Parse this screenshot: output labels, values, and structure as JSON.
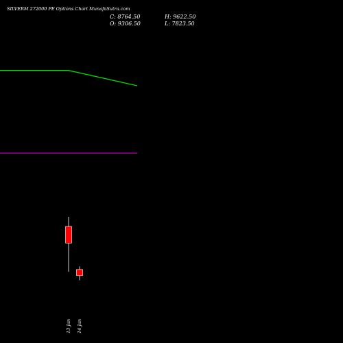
{
  "header": {
    "title": "SILVERM 272000  PE Options  Chart MunafaSutra.com",
    "close": "C: 8764.50",
    "open": "O: 9306.50",
    "high": "H: 9622.50",
    "low": "L: 7823.50"
  },
  "chart_data": {
    "type": "candlestick",
    "background": "#000000",
    "x_tick_labels": [
      "13 Jan",
      "14 Jan"
    ],
    "candles": [
      {
        "label": "13 Jan",
        "open": 9306.5,
        "high": 9622.5,
        "low": 7823.5,
        "close": 8764.5,
        "color": "#ff0000"
      },
      {
        "label": "14 Jan",
        "open": 7900,
        "high": 8000,
        "low": 7550,
        "close": 7700,
        "color": "#ff0000"
      }
    ],
    "overlays": [
      {
        "color": "#00dd00",
        "values": [
          14400,
          14400,
          13900
        ]
      },
      {
        "color": "#aa00aa",
        "values": [
          11700,
          11700,
          11700
        ]
      }
    ],
    "y_range": [
      5500,
      16700
    ]
  }
}
